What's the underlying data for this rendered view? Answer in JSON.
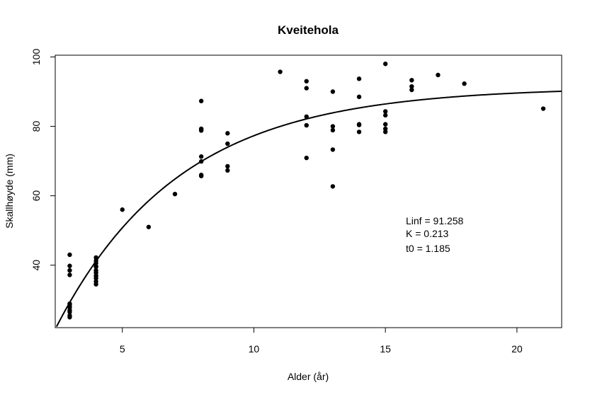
{
  "chart_data": {
    "type": "scatter",
    "title": "Kveitehola",
    "xlabel": "Alder (år)",
    "ylabel": "Skallhøyde (mm)",
    "xlim": [
      2.45,
      21.7
    ],
    "ylim": [
      22,
      100.5
    ],
    "xticks": [
      5,
      10,
      15,
      20
    ],
    "yticks": [
      40,
      60,
      80,
      100
    ],
    "grid": false,
    "series": [
      {
        "name": "observations",
        "kind": "points",
        "x": [
          3,
          3,
          3,
          3,
          3,
          3,
          3,
          3,
          3,
          3,
          3,
          4,
          4,
          4,
          4,
          4,
          4,
          4,
          4,
          4,
          4,
          4,
          4,
          5,
          6,
          7,
          8,
          8,
          8,
          8,
          8,
          8,
          8,
          8,
          9,
          9,
          9,
          9,
          11,
          12,
          12,
          12,
          12,
          12,
          13,
          13,
          13,
          13,
          13,
          14,
          14,
          14,
          14,
          14,
          15,
          15,
          15,
          15,
          15,
          15,
          16,
          16,
          16,
          17,
          18,
          21
        ],
        "y": [
          43,
          39.8,
          38.5,
          37.2,
          28.5,
          27.8,
          27,
          26.5,
          25.5,
          25,
          28.9,
          42.2,
          41.3,
          40.6,
          39.5,
          38.5,
          37.8,
          37,
          36.2,
          35.3,
          34.5,
          39.7,
          36.8,
          56,
          51,
          60.5,
          87.3,
          79.3,
          78.8,
          71.3,
          69.9,
          66,
          65.7,
          79,
          78,
          75,
          68.5,
          67.3,
          95.7,
          93,
          91,
          82.8,
          80.3,
          70.9,
          90,
          80,
          78.9,
          73.3,
          62.7,
          93.7,
          88.5,
          80.6,
          78.4,
          80.4,
          98,
          84.3,
          83.2,
          80.6,
          79.3,
          78.4,
          93.3,
          91.5,
          90.5,
          94.8,
          92.3,
          85.1
        ]
      },
      {
        "name": "von Bertalanffy fit",
        "kind": "line",
        "Linf": 91.258,
        "K": 0.213,
        "t0": 1.185
      }
    ],
    "annotations": [
      "Linf = 91.258",
      "K = 0.213",
      "t0 = 1.185"
    ]
  }
}
